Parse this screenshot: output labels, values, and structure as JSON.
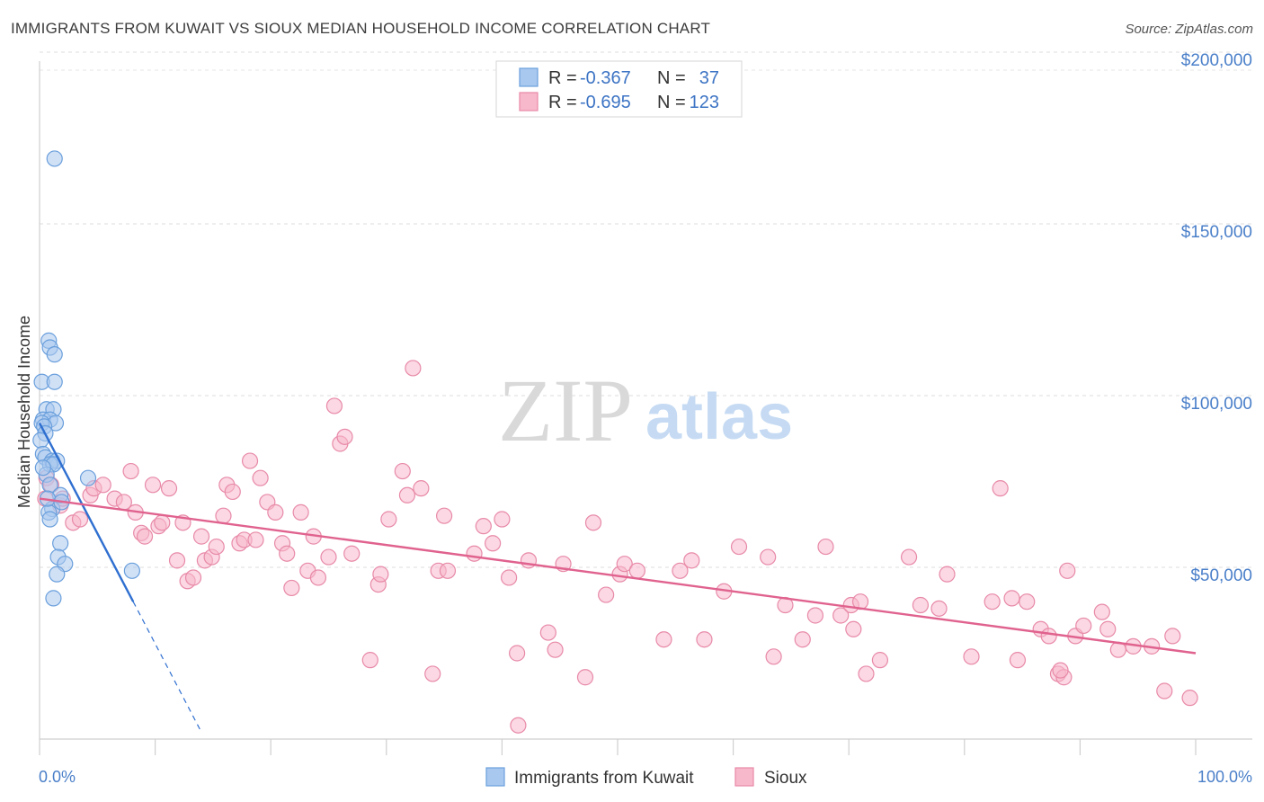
{
  "title": "IMMIGRANTS FROM KUWAIT VS SIOUX MEDIAN HOUSEHOLD INCOME CORRELATION CHART",
  "source": "Source: ZipAtlas.com",
  "watermark": {
    "zip": "ZIP",
    "atlas": "atlas"
  },
  "legend": {
    "rows": [
      {
        "r_label": "R =",
        "r_value": "-0.367",
        "n_label": "N =",
        "n_value": "37",
        "color": "#a9c8ef",
        "stroke": "#6a9fdc"
      },
      {
        "r_label": "R =",
        "r_value": "-0.695",
        "n_label": "N =",
        "n_value": "123",
        "color": "#f8b8cc",
        "stroke": "#e88aa8"
      }
    ]
  },
  "bottom_legend": [
    {
      "label": "Immigrants from Kuwait",
      "color": "#a9c8ef",
      "stroke": "#6a9fdc"
    },
    {
      "label": "Sioux",
      "color": "#f8b8cc",
      "stroke": "#e88aa8"
    }
  ],
  "chart_data": {
    "type": "scatter",
    "title": "IMMIGRANTS FROM KUWAIT VS SIOUX MEDIAN HOUSEHOLD INCOME CORRELATION CHART",
    "xlabel": "",
    "ylabel": "Median Household Income",
    "xlim": [
      0,
      100
    ],
    "ylim": [
      0,
      210000
    ],
    "x_tick_labels": [
      "0.0%",
      "100.0%"
    ],
    "y_ticks": [
      50000,
      100000,
      150000,
      200000
    ],
    "y_tick_labels": [
      "$50,000",
      "$100,000",
      "$150,000",
      "$200,000"
    ],
    "grid": true,
    "series": [
      {
        "name": "Immigrants from Kuwait",
        "color": "#a9c8ef",
        "stroke": "#6a9fdc",
        "line_color": "#2f6fd0",
        "trend": {
          "x0": 0,
          "y0": 92000,
          "x1": 8.1,
          "y1": 40000,
          "dash_to_x": 14,
          "dash_to_y": 2000
        },
        "points": [
          [
            1.3,
            169000
          ],
          [
            0.8,
            116000
          ],
          [
            0.9,
            114000
          ],
          [
            1.3,
            112000
          ],
          [
            0.2,
            104000
          ],
          [
            1.3,
            104000
          ],
          [
            0.6,
            96000
          ],
          [
            1.2,
            96000
          ],
          [
            0.3,
            93000
          ],
          [
            0.9,
            93000
          ],
          [
            1.4,
            92000
          ],
          [
            0.2,
            92000
          ],
          [
            0.4,
            91000
          ],
          [
            0.5,
            89000
          ],
          [
            0.1,
            87000
          ],
          [
            0.3,
            83000
          ],
          [
            0.5,
            82000
          ],
          [
            1.1,
            81000
          ],
          [
            1.5,
            81000
          ],
          [
            0.9,
            80000
          ],
          [
            1.2,
            80000
          ],
          [
            0.6,
            77000
          ],
          [
            4.2,
            76000
          ],
          [
            0.9,
            74000
          ],
          [
            1.8,
            71000
          ],
          [
            1.1,
            67000
          ],
          [
            0.8,
            66000
          ],
          [
            0.9,
            64000
          ],
          [
            1.8,
            57000
          ],
          [
            1.6,
            53000
          ],
          [
            2.2,
            51000
          ],
          [
            1.5,
            48000
          ],
          [
            8.0,
            49000
          ],
          [
            1.2,
            41000
          ],
          [
            0.7,
            70000
          ],
          [
            0.3,
            79000
          ],
          [
            1.9,
            69000
          ]
        ]
      },
      {
        "name": "Sioux",
        "color": "#f8b8cc",
        "stroke": "#e88aa8",
        "line_color": "#e0628e",
        "trend": {
          "x0": 0,
          "y0": 70000,
          "x1": 100,
          "y1": 25000
        },
        "points": [
          [
            0.6,
            76000
          ],
          [
            0.5,
            70000
          ],
          [
            1.0,
            74000
          ],
          [
            1.8,
            68000
          ],
          [
            2.0,
            70000
          ],
          [
            2.9,
            63000
          ],
          [
            3.5,
            64000
          ],
          [
            4.4,
            71000
          ],
          [
            4.7,
            73000
          ],
          [
            5.5,
            74000
          ],
          [
            6.5,
            70000
          ],
          [
            7.3,
            69000
          ],
          [
            7.9,
            78000
          ],
          [
            8.3,
            66000
          ],
          [
            8.8,
            60000
          ],
          [
            9.1,
            59000
          ],
          [
            9.8,
            74000
          ],
          [
            10.3,
            62000
          ],
          [
            10.6,
            63000
          ],
          [
            11.2,
            73000
          ],
          [
            11.9,
            52000
          ],
          [
            12.4,
            63000
          ],
          [
            12.8,
            46000
          ],
          [
            13.3,
            47000
          ],
          [
            14.0,
            59000
          ],
          [
            14.3,
            52000
          ],
          [
            14.9,
            53000
          ],
          [
            15.3,
            56000
          ],
          [
            15.9,
            65000
          ],
          [
            16.2,
            74000
          ],
          [
            16.7,
            72000
          ],
          [
            17.3,
            57000
          ],
          [
            17.7,
            58000
          ],
          [
            18.2,
            81000
          ],
          [
            18.7,
            58000
          ],
          [
            19.1,
            76000
          ],
          [
            19.7,
            69000
          ],
          [
            20.4,
            66000
          ],
          [
            21.0,
            57000
          ],
          [
            21.4,
            54000
          ],
          [
            21.8,
            44000
          ],
          [
            22.6,
            66000
          ],
          [
            23.2,
            49000
          ],
          [
            23.7,
            59000
          ],
          [
            24.1,
            47000
          ],
          [
            25.0,
            53000
          ],
          [
            25.5,
            97000
          ],
          [
            26.0,
            86000
          ],
          [
            26.4,
            88000
          ],
          [
            27.0,
            54000
          ],
          [
            28.6,
            23000
          ],
          [
            29.3,
            45000
          ],
          [
            29.5,
            48000
          ],
          [
            30.2,
            64000
          ],
          [
            31.4,
            78000
          ],
          [
            31.8,
            71000
          ],
          [
            32.3,
            108000
          ],
          [
            33.0,
            73000
          ],
          [
            34.0,
            19000
          ],
          [
            34.5,
            49000
          ],
          [
            35.0,
            65000
          ],
          [
            35.3,
            49000
          ],
          [
            37.6,
            54000
          ],
          [
            38.4,
            62000
          ],
          [
            39.2,
            57000
          ],
          [
            40.0,
            64000
          ],
          [
            40.6,
            47000
          ],
          [
            41.3,
            25000
          ],
          [
            41.4,
            4000
          ],
          [
            42.3,
            52000
          ],
          [
            44.0,
            31000
          ],
          [
            44.6,
            26000
          ],
          [
            45.3,
            51000
          ],
          [
            47.2,
            18000
          ],
          [
            47.9,
            63000
          ],
          [
            49.0,
            42000
          ],
          [
            50.2,
            48000
          ],
          [
            50.6,
            51000
          ],
          [
            51.7,
            49000
          ],
          [
            54.0,
            29000
          ],
          [
            55.4,
            49000
          ],
          [
            56.4,
            52000
          ],
          [
            57.5,
            29000
          ],
          [
            59.2,
            43000
          ],
          [
            60.5,
            56000
          ],
          [
            63.0,
            53000
          ],
          [
            64.5,
            39000
          ],
          [
            66.0,
            29000
          ],
          [
            67.1,
            36000
          ],
          [
            68.0,
            56000
          ],
          [
            69.3,
            36000
          ],
          [
            70.2,
            39000
          ],
          [
            70.4,
            32000
          ],
          [
            71.5,
            19000
          ],
          [
            72.7,
            23000
          ],
          [
            75.2,
            53000
          ],
          [
            76.2,
            39000
          ],
          [
            77.8,
            38000
          ],
          [
            78.5,
            48000
          ],
          [
            80.6,
            24000
          ],
          [
            82.4,
            40000
          ],
          [
            83.1,
            73000
          ],
          [
            84.1,
            41000
          ],
          [
            84.6,
            23000
          ],
          [
            85.4,
            40000
          ],
          [
            86.6,
            32000
          ],
          [
            87.3,
            30000
          ],
          [
            88.1,
            19000
          ],
          [
            88.6,
            18000
          ],
          [
            88.9,
            49000
          ],
          [
            89.6,
            30000
          ],
          [
            90.3,
            33000
          ],
          [
            91.9,
            37000
          ],
          [
            92.4,
            32000
          ],
          [
            93.3,
            26000
          ],
          [
            94.6,
            27000
          ],
          [
            96.2,
            27000
          ],
          [
            97.3,
            14000
          ],
          [
            98.0,
            30000
          ],
          [
            99.5,
            12000
          ],
          [
            88.3,
            20000
          ],
          [
            71.0,
            40000
          ],
          [
            63.5,
            24000
          ]
        ]
      }
    ]
  }
}
